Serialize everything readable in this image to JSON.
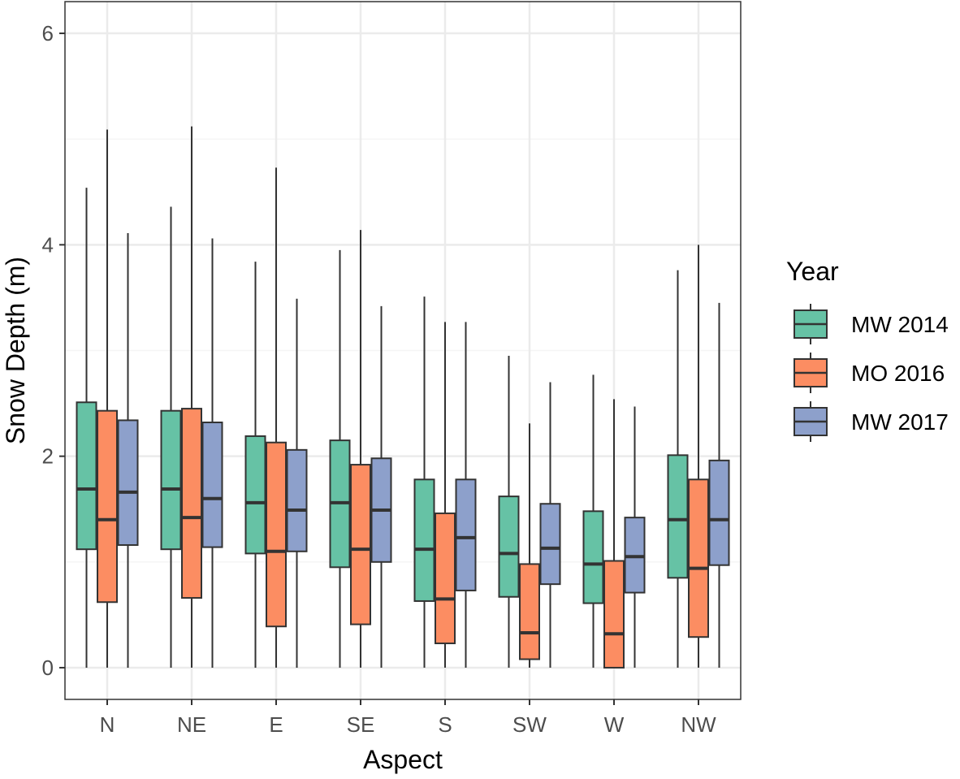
{
  "chart_data": {
    "type": "boxplot",
    "xlabel": "Aspect",
    "ylabel": "Snow Depth (m)",
    "ylim": [
      -0.3,
      6.3
    ],
    "yticks": [
      0,
      2,
      4,
      6
    ],
    "grid": true,
    "categories": [
      "N",
      "NE",
      "E",
      "SE",
      "S",
      "SW",
      "W",
      "NW"
    ],
    "legend": {
      "title": "Year",
      "position": "right"
    },
    "series": [
      {
        "name": "MW 2014",
        "color": "#66c2a5",
        "boxes": [
          {
            "min": 0,
            "q1": 1.12,
            "median": 1.69,
            "q3": 2.51,
            "max": 4.54
          },
          {
            "min": 0,
            "q1": 1.12,
            "median": 1.69,
            "q3": 2.43,
            "max": 4.36
          },
          {
            "min": 0,
            "q1": 1.08,
            "median": 1.56,
            "q3": 2.19,
            "max": 3.84
          },
          {
            "min": 0,
            "q1": 0.95,
            "median": 1.56,
            "q3": 2.15,
            "max": 3.95
          },
          {
            "min": 0,
            "q1": 0.63,
            "median": 1.12,
            "q3": 1.78,
            "max": 3.51
          },
          {
            "min": 0,
            "q1": 0.67,
            "median": 1.08,
            "q3": 1.62,
            "max": 2.95
          },
          {
            "min": 0,
            "q1": 0.61,
            "median": 0.98,
            "q3": 1.48,
            "max": 2.77
          },
          {
            "min": 0,
            "q1": 0.85,
            "median": 1.4,
            "q3": 2.01,
            "max": 3.76
          }
        ]
      },
      {
        "name": "MO 2016",
        "color": "#fc8d62",
        "boxes": [
          {
            "min": 0,
            "q1": 0.62,
            "median": 1.4,
            "q3": 2.43,
            "max": 5.09
          },
          {
            "min": 0,
            "q1": 0.66,
            "median": 1.42,
            "q3": 2.45,
            "max": 5.12
          },
          {
            "min": 0,
            "q1": 0.39,
            "median": 1.1,
            "q3": 2.13,
            "max": 4.73
          },
          {
            "min": 0,
            "q1": 0.41,
            "median": 1.12,
            "q3": 1.92,
            "max": 4.14
          },
          {
            "min": 0,
            "q1": 0.23,
            "median": 0.65,
            "q3": 1.46,
            "max": 3.27
          },
          {
            "min": 0,
            "q1": 0.08,
            "median": 0.33,
            "q3": 0.98,
            "max": 2.31
          },
          {
            "min": 0,
            "q1": 0.0,
            "median": 0.32,
            "q3": 1.01,
            "max": 2.54
          },
          {
            "min": 0,
            "q1": 0.29,
            "median": 0.94,
            "q3": 1.78,
            "max": 4.0
          }
        ]
      },
      {
        "name": "MW 2017",
        "color": "#8da0cb",
        "boxes": [
          {
            "min": 0,
            "q1": 1.16,
            "median": 1.66,
            "q3": 2.34,
            "max": 4.11
          },
          {
            "min": 0,
            "q1": 1.14,
            "median": 1.6,
            "q3": 2.32,
            "max": 4.06
          },
          {
            "min": 0,
            "q1": 1.1,
            "median": 1.49,
            "q3": 2.06,
            "max": 3.49
          },
          {
            "min": 0,
            "q1": 1.0,
            "median": 1.49,
            "q3": 1.98,
            "max": 3.42
          },
          {
            "min": 0,
            "q1": 0.73,
            "median": 1.23,
            "q3": 1.78,
            "max": 3.27
          },
          {
            "min": 0,
            "q1": 0.79,
            "median": 1.13,
            "q3": 1.55,
            "max": 2.7
          },
          {
            "min": 0,
            "q1": 0.71,
            "median": 1.05,
            "q3": 1.42,
            "max": 2.47
          },
          {
            "min": 0,
            "q1": 0.97,
            "median": 1.4,
            "q3": 1.96,
            "max": 3.45
          }
        ]
      }
    ],
    "colors": {
      "panel_border": "#333333",
      "grid_major": "#ebebeb",
      "grid_minor": "#f5f5f5",
      "box_outline": "#333333"
    }
  }
}
